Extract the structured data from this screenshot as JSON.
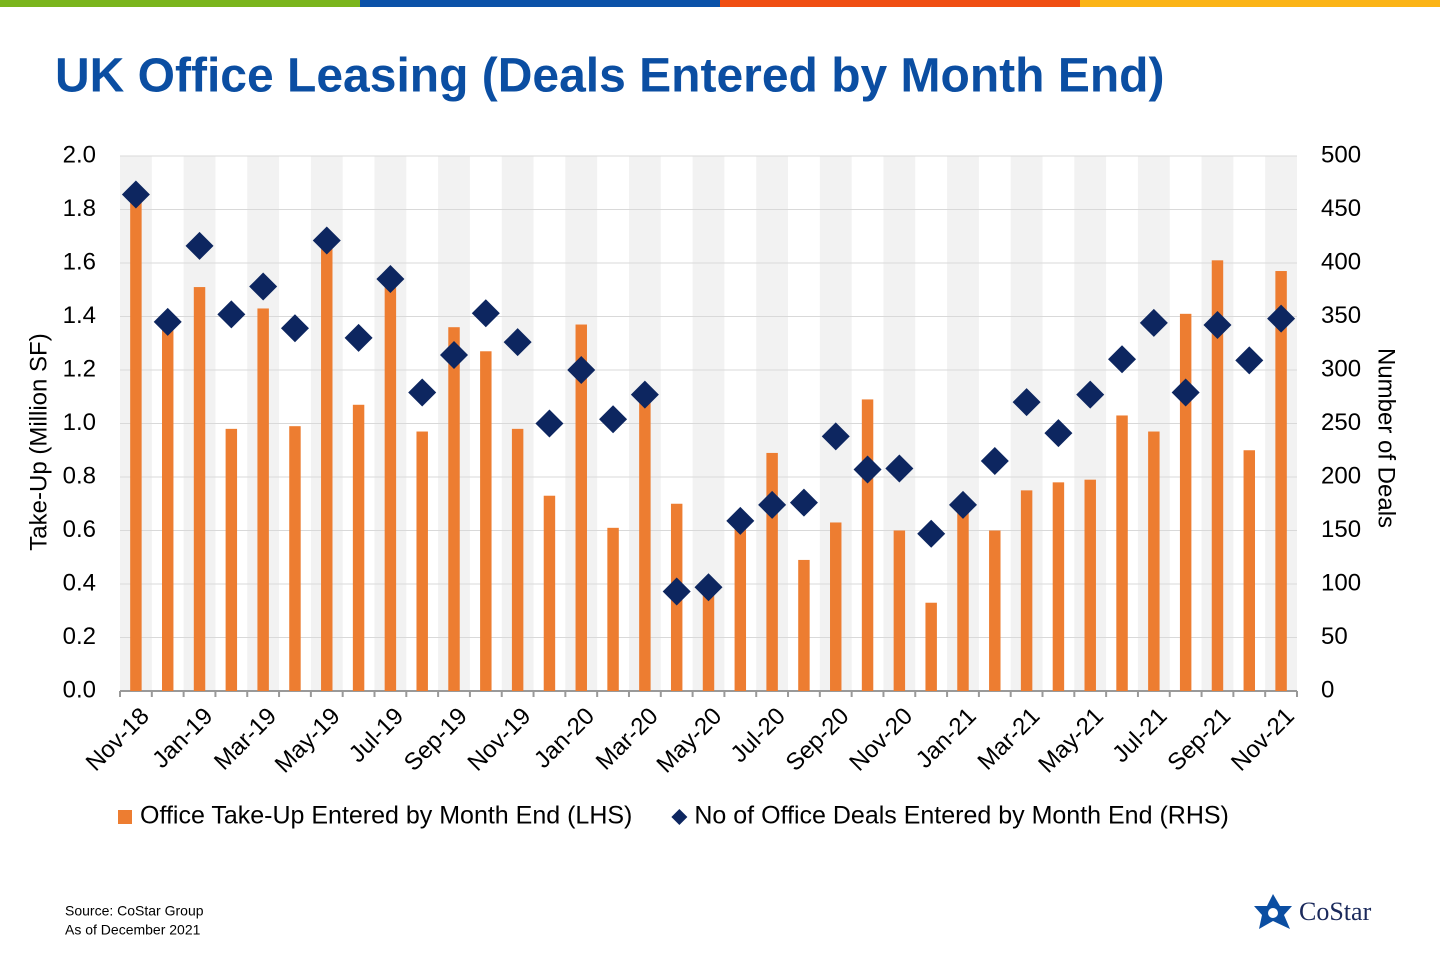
{
  "chart_data": {
    "type": "bar",
    "title": "UK Office Leasing (Deals Entered by Month End)",
    "y_label": "Take-Up (Million SF)",
    "y2_label": "Number of Deals",
    "categories": [
      "Nov-18",
      null,
      "Jan-19",
      null,
      "Mar-19",
      null,
      "May-19",
      null,
      "Jul-19",
      null,
      "Sep-19",
      null,
      "Nov-19",
      null,
      "Jan-20",
      null,
      "Mar-20",
      null,
      "May-20",
      null,
      "Jul-20",
      null,
      "Sep-20",
      null,
      "Nov-20",
      null,
      "Jan-21",
      null,
      "Mar-21",
      null,
      "May-21",
      null,
      "Jul-21",
      null,
      "Sep-21",
      null,
      "Nov-21"
    ],
    "series": [
      {
        "name": "Office Take-Up Entered by Month End (LHS)",
        "type": "bar",
        "axis": "y",
        "color": "#ed7d31",
        "values": [
          1.84,
          1.36,
          1.51,
          0.98,
          1.43,
          0.99,
          1.67,
          1.07,
          1.53,
          0.97,
          1.36,
          1.27,
          0.98,
          0.73,
          1.37,
          0.61,
          1.1,
          0.7,
          0.37,
          0.63,
          0.89,
          0.49,
          0.63,
          1.09,
          0.6,
          0.33,
          0.67,
          0.6,
          0.75,
          0.78,
          0.79,
          1.03,
          0.97,
          1.41,
          1.61,
          0.9,
          1.57
        ]
      },
      {
        "name": "No of Office Deals Entered by Month End (RHS)",
        "type": "scatter",
        "axis": "y2",
        "color": "#0d2660",
        "values": [
          464,
          345,
          416,
          352,
          378,
          339,
          421,
          330,
          385,
          279,
          314,
          353,
          326,
          250,
          300,
          254,
          277,
          93,
          97,
          159,
          174,
          176,
          238,
          207,
          208,
          147,
          174,
          215,
          270,
          241,
          277,
          310,
          344,
          279,
          342,
          309,
          348
        ]
      }
    ],
    "ylim": [
      0,
      2
    ],
    "yticks": [
      {
        "value": 0,
        "label": "0.0"
      },
      0.2,
      0.4,
      0.6,
      0.8,
      {
        "value": 1,
        "label": "1.0"
      },
      1.2,
      1.4,
      1.6,
      1.8,
      {
        "value": 2,
        "label": "2.0"
      }
    ],
    "y2lim": [
      0,
      500
    ],
    "y2ticks": [
      0,
      50,
      100,
      150,
      200,
      250,
      300,
      350,
      400,
      450,
      500
    ],
    "grid": true,
    "alternating_bands": true,
    "legend": "bottom",
    "source": "Source:  CoStar Group",
    "as_of": "As of December 2021",
    "logo": "CoStar"
  }
}
